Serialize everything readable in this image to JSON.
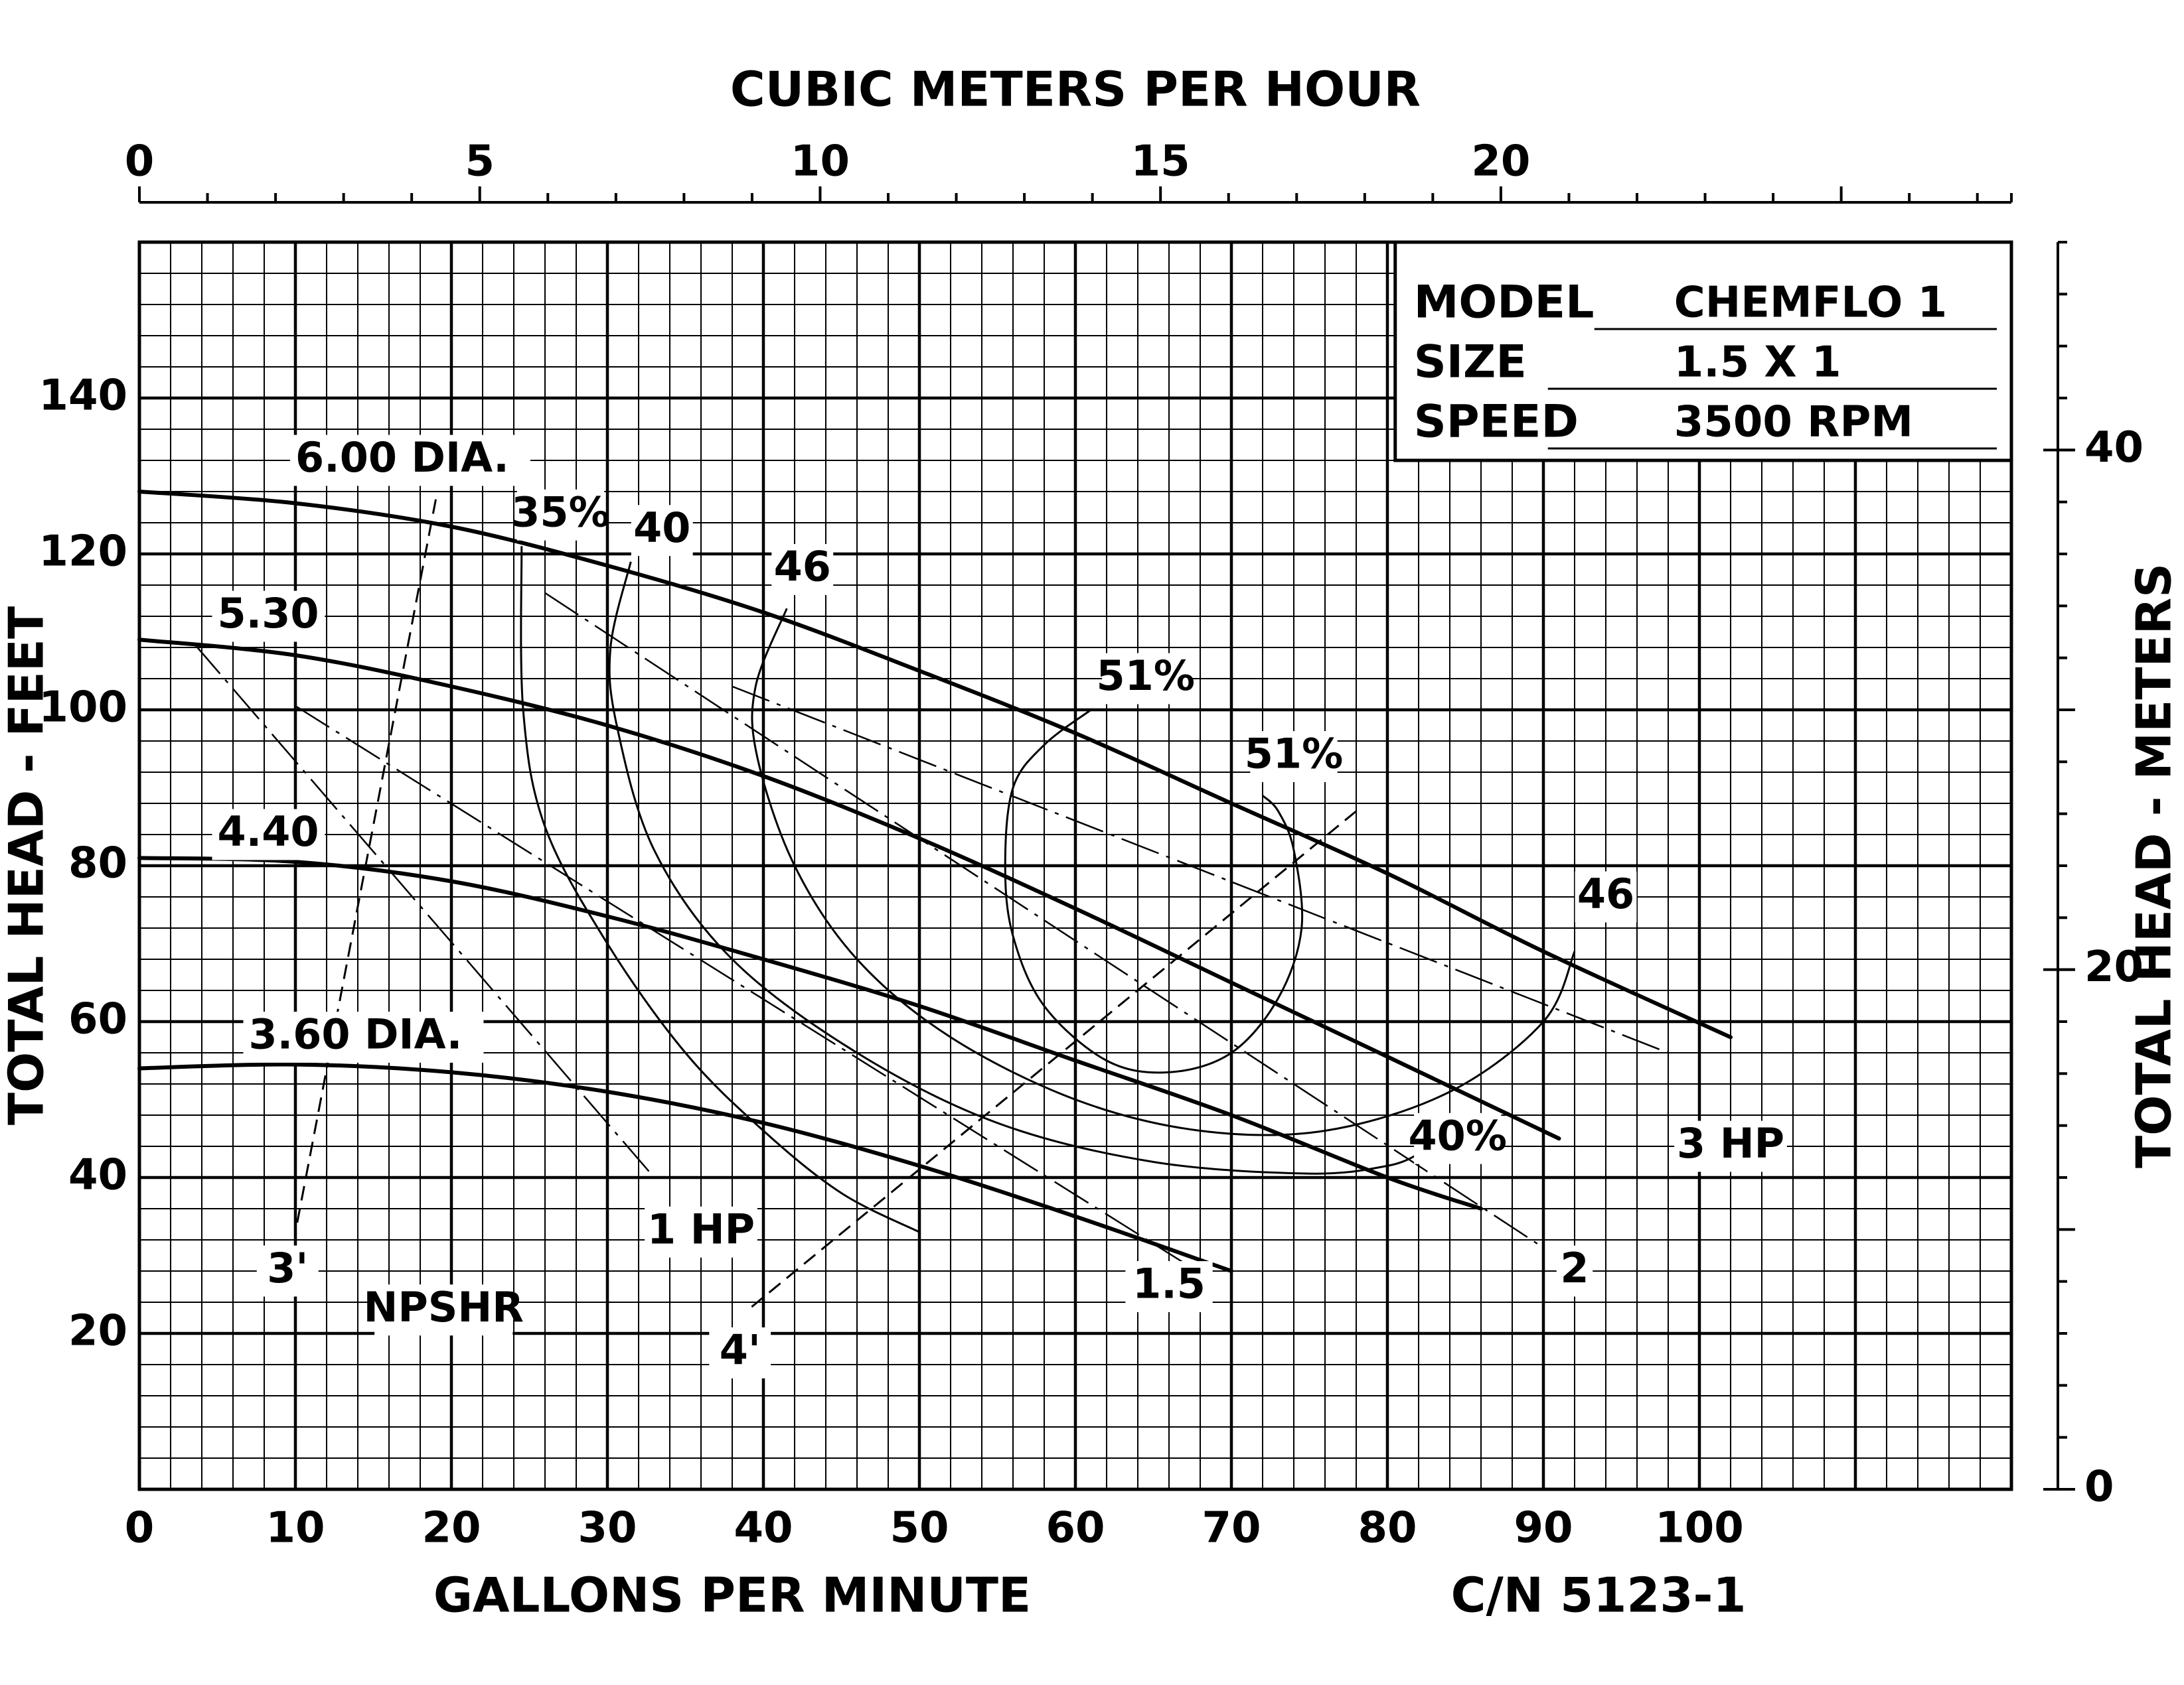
{
  "chart_data": {
    "type": "line",
    "title": "",
    "top_axis": {
      "label": "CUBIC METERS PER HOUR",
      "range": [
        0,
        27.5
      ],
      "ticks": [
        0,
        5,
        10,
        15,
        20
      ]
    },
    "bottom_axis": {
      "label": "GALLONS PER MINUTE",
      "range": [
        0,
        120
      ],
      "ticks": [
        0,
        10,
        20,
        30,
        40,
        50,
        60,
        70,
        80,
        90,
        100
      ]
    },
    "left_axis": {
      "label": "TOTAL HEAD - FEET",
      "range": [
        0,
        160
      ],
      "ticks": [
        20,
        40,
        60,
        80,
        100,
        120,
        140
      ]
    },
    "right_axis": {
      "label": "TOTAL HEAD - METERS",
      "range": [
        0,
        48
      ],
      "ticks": [
        0,
        20,
        40
      ]
    },
    "grid": true,
    "info_box": {
      "rows": [
        {
          "key": "MODEL",
          "value": "CHEMFLO 1"
        },
        {
          "key": "SIZE",
          "value": "1.5 X 1"
        },
        {
          "key": "SPEED",
          "value": "3500 RPM"
        }
      ]
    },
    "catalog_number": "C/N 5123-1",
    "series": [
      {
        "name": "6.00 DIA.",
        "kind": "head",
        "x": [
          0,
          10,
          20,
          30,
          40,
          50,
          60,
          70,
          80,
          90,
          102
        ],
        "y": [
          128,
          126.5,
          123.5,
          118.5,
          112.5,
          105,
          97,
          88,
          79,
          69,
          58
        ]
      },
      {
        "name": "5.30",
        "kind": "head",
        "x": [
          0,
          10,
          20,
          30,
          40,
          50,
          60,
          70,
          80,
          91
        ],
        "y": [
          109,
          107,
          103,
          98,
          91.5,
          83.5,
          74.5,
          65,
          55.5,
          45
        ]
      },
      {
        "name": "4.40",
        "kind": "head",
        "x": [
          0,
          10,
          20,
          30,
          40,
          50,
          60,
          70,
          80,
          86
        ],
        "y": [
          81,
          80.5,
          78,
          73.5,
          68,
          62,
          55,
          48,
          40,
          36
        ]
      },
      {
        "name": "3.60 DIA.",
        "kind": "head",
        "x": [
          0,
          10,
          20,
          30,
          40,
          50,
          60,
          70
        ],
        "y": [
          54,
          54.5,
          53.5,
          51,
          47,
          41.5,
          35,
          28
        ]
      }
    ],
    "efficiency_curves": [
      {
        "label": "35%",
        "x": [
          24.5,
          24.6,
          26,
          30,
          35,
          40,
          45,
          50
        ],
        "y": [
          121,
          100,
          85,
          70,
          56,
          46,
          38,
          33
        ]
      },
      {
        "label": "40",
        "x": [
          31.5,
          30.2,
          30.6,
          33,
          38,
          46,
          55,
          65,
          75,
          80,
          82
        ],
        "y": [
          119,
          108,
          98,
          82,
          68,
          56,
          47,
          42,
          40.5,
          41.5,
          43
        ]
      },
      {
        "label": "46",
        "x": [
          41.5,
          39.5,
          39.6,
          42,
          46,
          52,
          60,
          68,
          76,
          84,
          90,
          92
        ],
        "y": [
          113,
          103,
          94,
          80,
          68,
          58,
          50,
          46,
          46,
          51,
          60,
          69
        ]
      },
      {
        "label": "51%",
        "x": [
          61,
          58,
          56,
          55.5,
          56,
          58,
          62,
          66,
          70,
          73,
          74.5,
          74,
          73,
          72
        ],
        "y": [
          100,
          95.5,
          90,
          80,
          71,
          62,
          55,
          53.5,
          56,
          63,
          72,
          82,
          87,
          89
        ]
      }
    ],
    "efficiency_labels": [
      {
        "text": "35%",
        "x": 27,
        "y": 125
      },
      {
        "text": "40",
        "x": 33.5,
        "y": 123
      },
      {
        "text": "46",
        "x": 42.5,
        "y": 118
      },
      {
        "text": "51%",
        "x": 64.5,
        "y": 104
      },
      {
        "text": "51%",
        "x": 74,
        "y": 94
      },
      {
        "text": "46",
        "x": 94,
        "y": 76
      },
      {
        "text": "40%",
        "x": 84.5,
        "y": 45
      }
    ],
    "power_lines": [
      {
        "label": "1 HP",
        "from": [
          3.5,
          108.5
        ],
        "to": [
          33,
          40
        ],
        "label_at": [
          36,
          33
        ]
      },
      {
        "label": "1.5",
        "from": [
          10,
          100.5
        ],
        "to": [
          67,
          29
        ],
        "label_at": [
          66,
          26
        ]
      },
      {
        "label": "2",
        "from": [
          26,
          115
        ],
        "to": [
          90,
          31
        ],
        "label_at": [
          92,
          28
        ]
      },
      {
        "label": "3 HP",
        "from": [
          38,
          103
        ],
        "to": [
          98,
          56
        ],
        "label_at": [
          102,
          44
        ]
      }
    ],
    "npshr_lines": [
      {
        "label": "3'",
        "from": [
          19,
          127
        ],
        "to": [
          10,
          33
        ],
        "label_at": [
          9.5,
          28
        ]
      },
      {
        "label": "4'",
        "from": [
          78,
          87
        ],
        "to": [
          39,
          23
        ],
        "label_at": [
          38.5,
          17.5
        ]
      }
    ],
    "npshr_label": "NPSHR",
    "head_curve_labels": [
      {
        "text": "6.00 DIA.",
        "x": 10,
        "y": 132
      },
      {
        "text": "5.30",
        "x": 5,
        "y": 112
      },
      {
        "text": "4.40",
        "x": 5,
        "y": 84
      },
      {
        "text": "3.60 DIA.",
        "x": 7,
        "y": 58
      }
    ]
  }
}
